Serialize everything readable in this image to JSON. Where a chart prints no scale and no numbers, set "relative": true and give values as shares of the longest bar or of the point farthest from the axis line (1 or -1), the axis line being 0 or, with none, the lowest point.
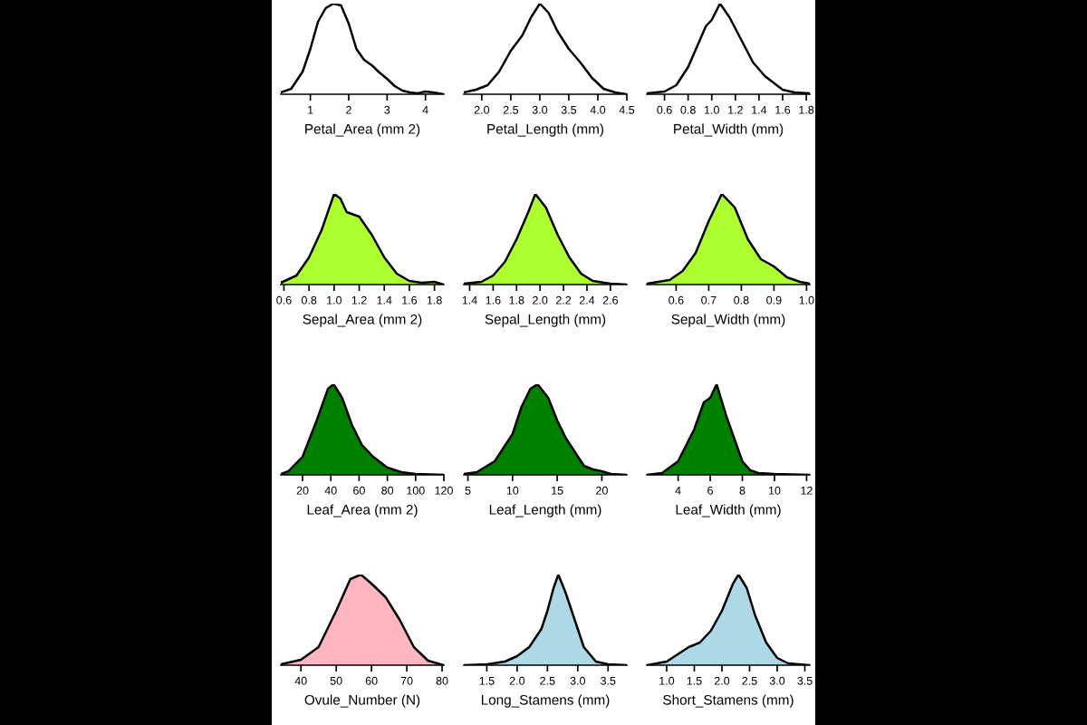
{
  "chart_data": [
    {
      "type": "line",
      "xlabel": "Petal_Area (mm 2)",
      "relative": true,
      "xlim": [
        0.23,
        4.48
      ],
      "xticks": [
        1,
        2,
        3,
        4
      ],
      "series": [
        {
          "color": "#000000",
          "x": [
            0.23,
            0.5,
            0.8,
            1.0,
            1.2,
            1.4,
            1.6,
            1.8,
            2.0,
            2.2,
            2.4,
            2.6,
            2.8,
            3.0,
            3.2,
            3.4,
            3.6,
            3.8,
            4.0,
            4.2,
            4.48
          ],
          "values": [
            0.02,
            0.06,
            0.25,
            0.5,
            0.8,
            0.95,
            1.0,
            0.98,
            0.78,
            0.5,
            0.38,
            0.32,
            0.24,
            0.17,
            0.09,
            0.04,
            0.02,
            0.01,
            0.03,
            0.02,
            0.0
          ]
        }
      ]
    },
    {
      "type": "line",
      "xlabel": "Petal_Length (mm)",
      "relative": true,
      "xlim": [
        1.69,
        4.5
      ],
      "xticks": [
        {
          "value": 2,
          "label": "2.0"
        },
        2.5,
        {
          "value": 3,
          "label": "3.0"
        },
        3.5,
        {
          "value": 4,
          "label": "4.0"
        },
        4.5
      ],
      "series": [
        {
          "color": "#000000",
          "x": [
            1.69,
            1.9,
            2.1,
            2.3,
            2.5,
            2.7,
            2.85,
            3.0,
            3.15,
            3.3,
            3.5,
            3.7,
            3.9,
            4.1,
            4.3,
            4.5
          ],
          "values": [
            0.02,
            0.05,
            0.1,
            0.25,
            0.48,
            0.65,
            0.85,
            1.0,
            0.9,
            0.7,
            0.5,
            0.35,
            0.18,
            0.06,
            0.02,
            0.0
          ]
        }
      ]
    },
    {
      "type": "line",
      "xlabel": "Petal_Width (mm)",
      "relative": true,
      "xlim": [
        0.45,
        1.83
      ],
      "xticks": [
        0.6,
        0.8,
        {
          "value": 1,
          "label": "1.0"
        },
        1.2,
        1.4,
        1.6,
        1.8
      ],
      "series": [
        {
          "color": "#000000",
          "x": [
            0.45,
            0.6,
            0.7,
            0.8,
            0.9,
            0.95,
            1.0,
            1.07,
            1.15,
            1.25,
            1.35,
            1.45,
            1.5,
            1.6,
            1.7,
            1.83
          ],
          "values": [
            0.01,
            0.03,
            0.1,
            0.3,
            0.6,
            0.75,
            0.82,
            1.0,
            0.85,
            0.6,
            0.35,
            0.2,
            0.15,
            0.05,
            0.02,
            0.01
          ]
        }
      ]
    },
    {
      "type": "area",
      "xlabel": "Sepal_Area (mm 2)",
      "relative": true,
      "xlim": [
        0.575,
        1.875
      ],
      "xticks": [
        0.6,
        0.8,
        {
          "value": 1,
          "label": "1.0"
        },
        1.2,
        1.4,
        1.6,
        1.8
      ],
      "series": [
        {
          "color": "#adff2f",
          "x": [
            0.575,
            0.7,
            0.8,
            0.9,
            1.0,
            1.05,
            1.1,
            1.2,
            1.3,
            1.4,
            1.5,
            1.6,
            1.7,
            1.8,
            1.875
          ],
          "values": [
            0.02,
            0.1,
            0.3,
            0.6,
            1.0,
            0.95,
            0.8,
            0.75,
            0.55,
            0.3,
            0.12,
            0.04,
            0.02,
            0.03,
            0.0
          ]
        }
      ]
    },
    {
      "type": "area",
      "xlabel": "Sepal_Length (mm)",
      "relative": true,
      "xlim": [
        1.35,
        2.74
      ],
      "xticks": [
        1.4,
        1.6,
        1.8,
        {
          "value": 2,
          "label": "2.0"
        },
        2.2,
        2.4,
        2.6
      ],
      "series": [
        {
          "color": "#adff2f",
          "x": [
            1.35,
            1.5,
            1.6,
            1.7,
            1.8,
            1.9,
            1.96,
            2.05,
            2.15,
            2.25,
            2.35,
            2.45,
            2.6,
            2.74
          ],
          "values": [
            0.01,
            0.03,
            0.1,
            0.25,
            0.5,
            0.8,
            1.0,
            0.85,
            0.55,
            0.3,
            0.12,
            0.04,
            0.01,
            0.0
          ]
        }
      ]
    },
    {
      "type": "area",
      "xlabel": "Sepal_Width (mm)",
      "relative": true,
      "xlim": [
        0.51,
        1.01
      ],
      "xticks": [
        0.6,
        0.7,
        0.8,
        0.9,
        {
          "value": 1,
          "label": "1.0"
        }
      ],
      "series": [
        {
          "color": "#adff2f",
          "x": [
            0.51,
            0.58,
            0.62,
            0.66,
            0.7,
            0.74,
            0.78,
            0.82,
            0.86,
            0.9,
            0.94,
            0.98,
            1.01
          ],
          "values": [
            0.01,
            0.05,
            0.15,
            0.35,
            0.7,
            1.0,
            0.85,
            0.5,
            0.28,
            0.2,
            0.08,
            0.03,
            0.01
          ]
        }
      ]
    },
    {
      "type": "area",
      "xlabel": "Leaf_Area (mm 2)",
      "relative": true,
      "xlim": [
        4.6,
        120
      ],
      "xticks": [
        20,
        40,
        60,
        80,
        100,
        120
      ],
      "series": [
        {
          "color": "#008000",
          "x": [
            4.6,
            10,
            20,
            30,
            38,
            42,
            48,
            55,
            62,
            70,
            80,
            90,
            100,
            120
          ],
          "values": [
            0.01,
            0.04,
            0.2,
            0.6,
            0.95,
            1.0,
            0.85,
            0.55,
            0.33,
            0.2,
            0.08,
            0.03,
            0.01,
            0.0
          ]
        }
      ]
    },
    {
      "type": "area",
      "xlabel": "Leaf_Length (mm)",
      "relative": true,
      "xlim": [
        4.54,
        22.8
      ],
      "xticks": [
        5,
        10,
        15,
        20
      ],
      "series": [
        {
          "color": "#008000",
          "x": [
            4.54,
            6,
            8,
            10,
            11,
            12,
            12.8,
            14,
            15,
            16,
            17,
            18,
            19,
            20,
            21,
            22.8
          ],
          "values": [
            0.01,
            0.03,
            0.15,
            0.45,
            0.75,
            0.95,
            1.0,
            0.85,
            0.6,
            0.4,
            0.25,
            0.1,
            0.06,
            0.04,
            0.01,
            0.0
          ]
        }
      ]
    },
    {
      "type": "area",
      "xlabel": "Leaf_Width (mm)",
      "relative": true,
      "xlim": [
        2.05,
        12.2
      ],
      "xticks": [
        4,
        6,
        8,
        10,
        12
      ],
      "series": [
        {
          "color": "#008000",
          "x": [
            2.05,
            3,
            4,
            5,
            5.6,
            6,
            6.4,
            7,
            7.5,
            8,
            8.5,
            9,
            10,
            12.2
          ],
          "values": [
            0.0,
            0.02,
            0.15,
            0.5,
            0.8,
            0.85,
            1.0,
            0.65,
            0.4,
            0.15,
            0.05,
            0.02,
            0.01,
            0.0
          ]
        }
      ]
    },
    {
      "type": "area",
      "xlabel": "Ovule_Number (N)",
      "relative": true,
      "xlim": [
        34.3,
        80.5
      ],
      "xticks": [
        40,
        50,
        60,
        70,
        80
      ],
      "series": [
        {
          "color": "#ffb6c1",
          "x": [
            34.3,
            40,
            45,
            50,
            54,
            57,
            60,
            64,
            68,
            72,
            76,
            80.5
          ],
          "values": [
            0.01,
            0.06,
            0.2,
            0.6,
            0.95,
            1.0,
            0.9,
            0.75,
            0.5,
            0.2,
            0.05,
            0.0
          ]
        }
      ]
    },
    {
      "type": "area",
      "xlabel": "Long_Stamens (mm)",
      "relative": true,
      "xlim": [
        1.12,
        3.81
      ],
      "xticks": [
        1.5,
        {
          "value": 2,
          "label": "2.0"
        },
        2.5,
        {
          "value": 3,
          "label": "3.0"
        },
        3.5
      ],
      "series": [
        {
          "color": "#add8e6",
          "x": [
            1.12,
            1.5,
            1.8,
            2.0,
            2.2,
            2.4,
            2.5,
            2.6,
            2.68,
            2.8,
            2.95,
            3.1,
            3.3,
            3.5,
            3.81
          ],
          "values": [
            0.0,
            0.01,
            0.04,
            0.1,
            0.2,
            0.4,
            0.6,
            0.85,
            1.0,
            0.8,
            0.5,
            0.2,
            0.04,
            0.01,
            0.0
          ]
        }
      ]
    },
    {
      "type": "area",
      "xlabel": "Short_Stamens (mm)",
      "relative": true,
      "xlim": [
        0.64,
        3.59
      ],
      "xticks": [
        {
          "value": 1,
          "label": "1.0"
        },
        1.5,
        {
          "value": 2,
          "label": "2.0"
        },
        2.5,
        {
          "value": 3,
          "label": "3.0"
        },
        3.5
      ],
      "series": [
        {
          "color": "#add8e6",
          "x": [
            0.64,
            1.0,
            1.2,
            1.4,
            1.6,
            1.8,
            2.0,
            2.2,
            2.3,
            2.45,
            2.6,
            2.8,
            3.0,
            3.2,
            3.59
          ],
          "values": [
            0.0,
            0.04,
            0.12,
            0.2,
            0.25,
            0.38,
            0.6,
            0.9,
            1.0,
            0.85,
            0.55,
            0.25,
            0.08,
            0.02,
            0.0
          ]
        }
      ]
    }
  ]
}
